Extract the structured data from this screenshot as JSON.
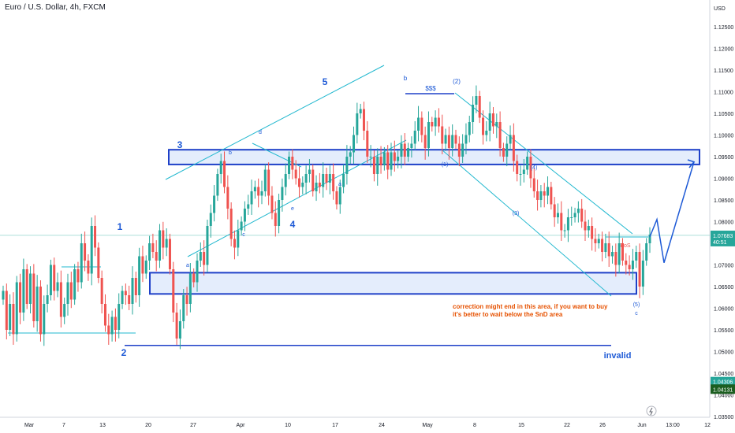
{
  "chart_title": "Euro / U.S. Dollar, 4h, FXCM",
  "currency": "USD",
  "colors": {
    "up": "#26a69a",
    "down": "#ef5350",
    "trendline": "#22b8cf",
    "zone_border": "#1e40c8",
    "zone_fill": "#dbe7fb",
    "wave_label": "#1e5ad6",
    "note": "#e65100",
    "current_tag": "#26a69a",
    "low_tag": "#1b5e20"
  },
  "chart_data": {
    "type": "candlestick",
    "symbol": "EURUSD",
    "timeframe": "4h",
    "ylim": [
      1.0355,
      1.1304
    ],
    "ytick_labels": [
      "1.12500",
      "1.12000",
      "1.11500",
      "1.11000",
      "1.10500",
      "1.10000",
      "1.09500",
      "1.09000",
      "1.08500",
      "1.08000",
      "1.07500",
      "1.07000",
      "1.06500",
      "1.06000",
      "1.05500",
      "1.05000",
      "1.04500",
      "1.04000",
      "1.03500"
    ],
    "xtick_labels": [
      "Mar",
      "7",
      "13",
      "20",
      "27",
      "Apr",
      "10",
      "17",
      "24",
      "May",
      "8",
      "15",
      "22",
      "26",
      "Jun",
      "13:00",
      "12"
    ],
    "current_price": "1.07683",
    "countdown": "40:51",
    "extra_price_labels": [
      "1.04306",
      "1.04131"
    ],
    "series": [
      {
        "values": [
          1.064,
          1.055,
          1.061,
          1.054,
          1.066,
          1.059,
          1.069,
          1.061,
          1.068,
          1.057,
          1.065,
          1.054,
          1.061,
          1.063,
          1.07,
          1.064,
          1.066,
          1.058,
          1.061,
          1.066,
          1.062,
          1.069,
          1.066,
          1.075,
          1.071,
          1.068,
          1.079,
          1.074,
          1.067,
          1.061,
          1.056,
          1.054,
          1.058,
          1.055,
          1.061,
          1.064,
          1.063,
          1.061,
          1.067,
          1.063,
          1.072,
          1.068,
          1.071,
          1.075,
          1.073,
          1.071,
          1.078,
          1.074,
          1.076,
          1.069,
          1.059,
          1.053,
          1.057,
          1.063,
          1.061,
          1.068,
          1.066,
          1.071,
          1.073,
          1.07,
          1.079,
          1.082,
          1.086,
          1.091,
          1.094,
          1.088,
          1.083,
          1.076,
          1.074,
          1.078,
          1.08,
          1.083,
          1.084,
          1.087,
          1.088,
          1.086,
          1.087,
          1.092,
          1.086,
          1.082,
          1.079,
          1.085,
          1.088,
          1.091,
          1.095,
          1.092,
          1.09,
          1.088,
          1.089,
          1.091,
          1.092,
          1.087,
          1.089,
          1.088,
          1.091,
          1.089,
          1.091,
          1.087,
          1.084,
          1.088,
          1.091,
          1.095,
          1.096,
          1.1,
          1.105,
          1.106,
          1.101,
          1.095,
          1.095,
          1.091,
          1.095,
          1.093,
          1.096,
          1.092,
          1.096,
          1.094,
          1.095,
          1.098,
          1.095,
          1.097,
          1.098,
          1.101,
          1.104,
          1.1,
          1.097,
          1.103,
          1.102,
          1.104,
          1.102,
          1.098,
          1.1,
          1.097,
          1.1,
          1.098,
          1.095,
          1.098,
          1.1,
          1.103,
          1.107,
          1.109,
          1.104,
          1.1,
          1.101,
          1.105,
          1.102,
          1.103,
          1.097,
          1.095,
          1.098,
          1.1,
          1.094,
          1.091,
          1.091,
          1.092,
          1.095,
          1.09,
          1.087,
          1.085,
          1.087,
          1.086,
          1.088,
          1.084,
          1.081,
          1.082,
          1.078,
          1.078,
          1.081,
          1.081,
          1.082,
          1.083,
          1.08,
          1.078,
          1.079,
          1.076,
          1.075,
          1.076,
          1.073,
          1.075,
          1.072,
          1.073,
          1.07,
          1.075,
          1.071,
          1.07,
          1.069,
          1.071,
          1.073,
          1.065,
          1.071,
          1.075,
          1.077
        ]
      }
    ],
    "annotations": {
      "wave_labels": [
        "1",
        "2",
        "3",
        "4",
        "5",
        "b",
        "(2)"
      ],
      "small_labels": [
        "a",
        "b",
        "c",
        "d",
        "e",
        "a",
        "(1)",
        "(3)",
        "(4)",
        "(5)",
        "c"
      ],
      "zone_labels": [
        "$$$",
        "BoS"
      ],
      "note": "correction might end in this area, if you want to buy\nit's better to wait below the SnD area",
      "invalid_label": "invalid",
      "supply_zone": [
        1.0932,
        1.0966
      ],
      "demand_zone": [
        1.0633,
        1.0682
      ],
      "invalid_level": 1.0514,
      "projection": [
        1.0765,
        1.0805,
        1.0705,
        1.0938
      ]
    }
  }
}
